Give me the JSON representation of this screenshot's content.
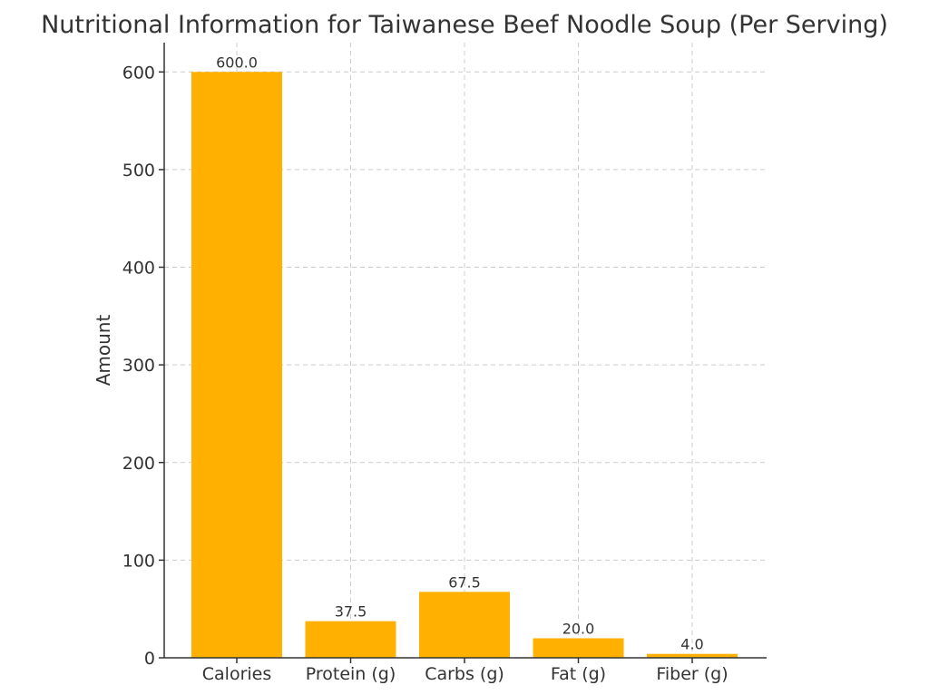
{
  "chart_data": {
    "type": "bar",
    "title": "Nutritional Information for Taiwanese Beef Noodle Soup (Per Serving)",
    "xlabel": "",
    "ylabel": "Amount",
    "categories": [
      "Calories",
      "Protein (g)",
      "Carbs (g)",
      "Fat (g)",
      "Fiber (g)"
    ],
    "values": [
      600.0,
      37.5,
      67.5,
      20.0,
      4.0
    ],
    "data_labels": [
      "600.0",
      "37.5",
      "67.5",
      "20.0",
      "4.0"
    ],
    "ylim": [
      0,
      630
    ],
    "yticks": [
      0,
      100,
      200,
      300,
      400,
      500,
      600
    ],
    "grid": true,
    "legend": "none",
    "bar_color": "#FFB000"
  }
}
